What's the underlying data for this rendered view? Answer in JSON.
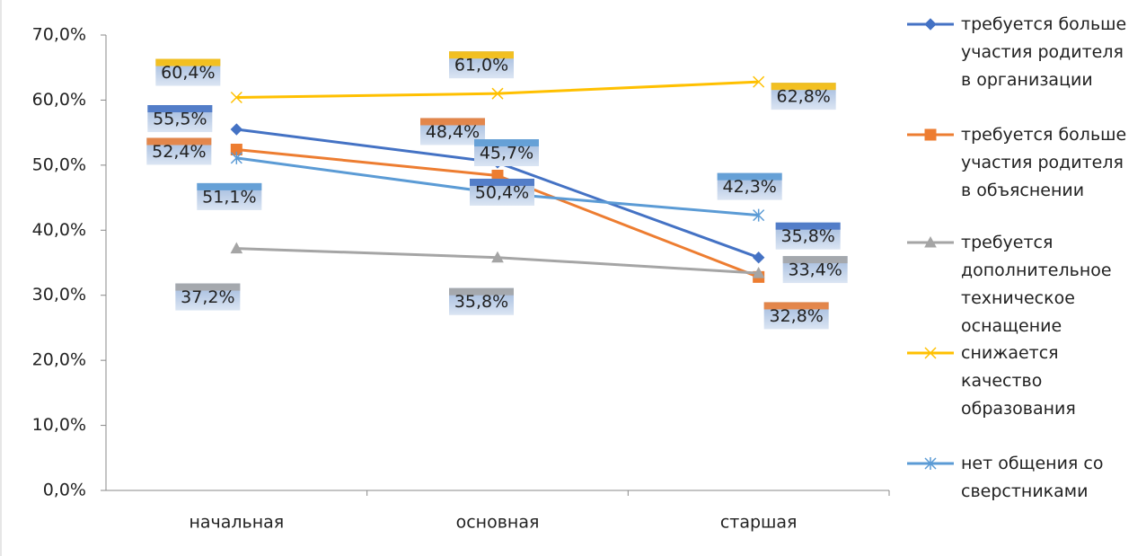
{
  "chart_data": {
    "type": "line",
    "categories": [
      "начальная",
      "основная",
      "старшая"
    ],
    "ylim": [
      0,
      70
    ],
    "yticks": [
      {
        "value": 0,
        "label": "0,0%"
      },
      {
        "value": 10,
        "label": "10,0%"
      },
      {
        "value": 20,
        "label": "20,0%"
      },
      {
        "value": 30,
        "label": "30,0%"
      },
      {
        "value": 40,
        "label": "40,0%"
      },
      {
        "value": 50,
        "label": "50,0%"
      },
      {
        "value": 60,
        "label": "60,0%"
      },
      {
        "value": 70,
        "label": "70,0%"
      }
    ],
    "legend": "right",
    "series": [
      {
        "name": "требуется больше участия родителя в организации",
        "color": "#4472c4",
        "marker": "diamond",
        "values": [
          55.5,
          50.4,
          35.8
        ],
        "value_labels": [
          "55,5%",
          "50,4%",
          "35,8%"
        ]
      },
      {
        "name": "требуется больше участия родителя в объяснении",
        "color": "#ed7d31",
        "marker": "square",
        "values": [
          52.4,
          48.4,
          32.8
        ],
        "value_labels": [
          "52,4%",
          "48,4%",
          "32,8%"
        ]
      },
      {
        "name": "требуется дополнительное техническое оснащение",
        "color": "#a5a5a5",
        "marker": "triangle",
        "values": [
          37.2,
          35.8,
          33.4
        ],
        "value_labels": [
          "37,2%",
          "35,8%",
          "33,4%"
        ]
      },
      {
        "name": "снижается качество образования",
        "color": "#ffc000",
        "marker": "x",
        "values": [
          60.4,
          61.0,
          62.8
        ],
        "value_labels": [
          "60,4%",
          "61,0%",
          "62,8%"
        ]
      },
      {
        "name": "нет общения со сверстниками",
        "color": "#5b9bd5",
        "marker": "star",
        "values": [
          51.1,
          45.7,
          42.3
        ],
        "value_labels": [
          "51,1%",
          "45,7%",
          "42,3%"
        ]
      }
    ]
  }
}
